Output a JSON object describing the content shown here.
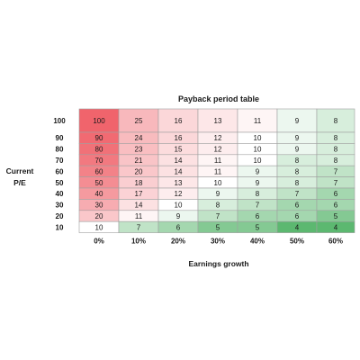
{
  "chart_data": {
    "type": "heatmap",
    "title": "Payback period table",
    "xlabel": "Earnings growth",
    "ylabel_line1": "Current",
    "ylabel_line2": "P/E",
    "x_categories": [
      "0%",
      "10%",
      "20%",
      "30%",
      "40%",
      "50%",
      "60%"
    ],
    "y_categories": [
      "100",
      "90",
      "80",
      "70",
      "60",
      "50",
      "40",
      "30",
      "20",
      "10"
    ],
    "values": [
      [
        100,
        25,
        16,
        13,
        11,
        9,
        8
      ],
      [
        90,
        24,
        16,
        12,
        10,
        9,
        8
      ],
      [
        80,
        23,
        15,
        12,
        10,
        9,
        8
      ],
      [
        70,
        21,
        14,
        11,
        10,
        8,
        8
      ],
      [
        60,
        20,
        14,
        11,
        9,
        8,
        7
      ],
      [
        50,
        18,
        13,
        10,
        9,
        8,
        7
      ],
      [
        40,
        17,
        12,
        9,
        8,
        7,
        6
      ],
      [
        30,
        14,
        10,
        8,
        7,
        6,
        6
      ],
      [
        20,
        11,
        9,
        7,
        6,
        6,
        5
      ],
      [
        10,
        7,
        6,
        5,
        5,
        4,
        4
      ]
    ],
    "color_scale": {
      "low": "#5cb870",
      "mid": "#ffffff",
      "high": "#f0646c"
    },
    "grid_color": "#a0a0a0"
  }
}
